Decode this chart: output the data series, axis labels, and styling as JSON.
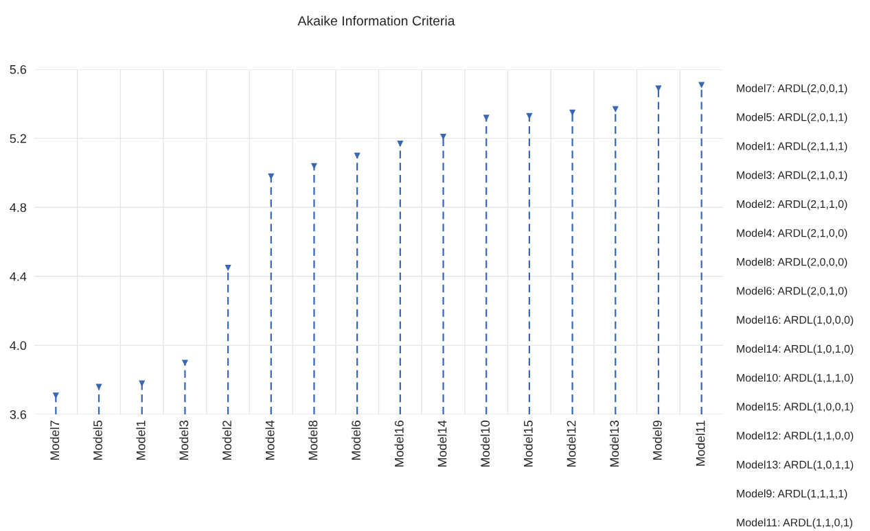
{
  "chart_data": {
    "type": "lollipop",
    "title": "Akaike Information Criteria",
    "categories": [
      "Model7",
      "Model5",
      "Model1",
      "Model3",
      "Model2",
      "Model4",
      "Model8",
      "Model6",
      "Model16",
      "Model14",
      "Model10",
      "Model15",
      "Model12",
      "Model13",
      "Model9",
      "Model11"
    ],
    "series": [
      {
        "color": "#3a67b4",
        "values": [
          3.71,
          3.76,
          3.78,
          3.9,
          4.45,
          4.98,
          5.04,
          5.1,
          5.17,
          5.21,
          5.32,
          5.33,
          5.35,
          5.37,
          5.49,
          5.51
        ]
      }
    ],
    "ylim": [
      3.6,
      5.6
    ],
    "yticks": [
      3.6,
      {
        "value": 4.0,
        "label": "4.0"
      },
      4.4,
      4.8,
      5.2,
      5.6
    ],
    "grid": true,
    "marker": "triangle",
    "line_style": "dashed",
    "annotations": [
      "Model7: ARDL(2,0,0,1)",
      "Model5: ARDL(2,0,1,1)",
      "Model1: ARDL(2,1,1,1)",
      "Model3: ARDL(2,1,0,1)",
      "Model2: ARDL(2,1,1,0)",
      "Model4: ARDL(2,1,0,0)",
      "Model8: ARDL(2,0,0,0)",
      "Model6: ARDL(2,0,1,0)",
      "Model16: ARDL(1,0,0,0)",
      "Model14: ARDL(1,0,1,0)",
      "Model10: ARDL(1,1,1,0)",
      "Model15: ARDL(1,0,0,1)",
      "Model12: ARDL(1,1,0,0)",
      "Model13: ARDL(1,0,1,1)",
      "Model9: ARDL(1,1,1,1)",
      "Model11: ARDL(1,1,0,1)"
    ]
  }
}
